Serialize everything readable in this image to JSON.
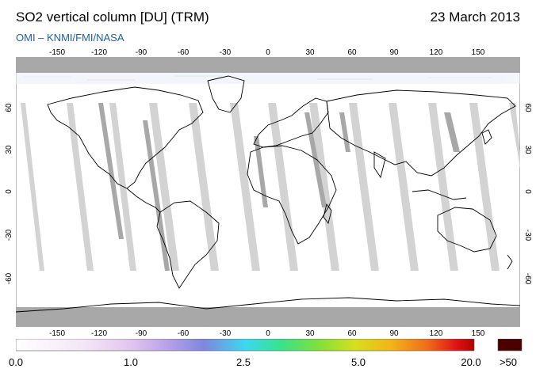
{
  "header": {
    "title": "SO2 vertical column [DU] (TRM)",
    "date": "23 March 2013",
    "credit": "OMI  –  KNMI/FMI/NASA"
  },
  "axes": {
    "longitude_ticks": [
      "-150",
      "-120",
      "-90",
      "-60",
      "-30",
      "0",
      "30",
      "60",
      "90",
      "120",
      "150"
    ],
    "latitude_ticks": [
      "60",
      "30",
      "0",
      "-30",
      "-60"
    ]
  },
  "colorbar": {
    "labels": [
      "0.0",
      "1.0",
      "2.5",
      "5.0",
      "20.0"
    ],
    "over_label": ">50",
    "over_color": "#4a0000",
    "colors": [
      "#ffffff",
      "#f3e6f6",
      "#e2c6ee",
      "#b7a2e8",
      "#7f86de",
      "#3bd8f2",
      "#37e38a",
      "#7fe13a",
      "#d6e01a",
      "#f3b317",
      "#ef6a17",
      "#e01414",
      "#b30000"
    ]
  },
  "map": {
    "background_color": "#ffffff",
    "no_data_color": "#a8a8a8",
    "orbit_gap_color": "#d3d3d3",
    "coastline_color": "#000000",
    "projection": "equirectangular",
    "lon_range": [
      -180,
      180
    ],
    "lat_range": [
      -90,
      90
    ]
  }
}
